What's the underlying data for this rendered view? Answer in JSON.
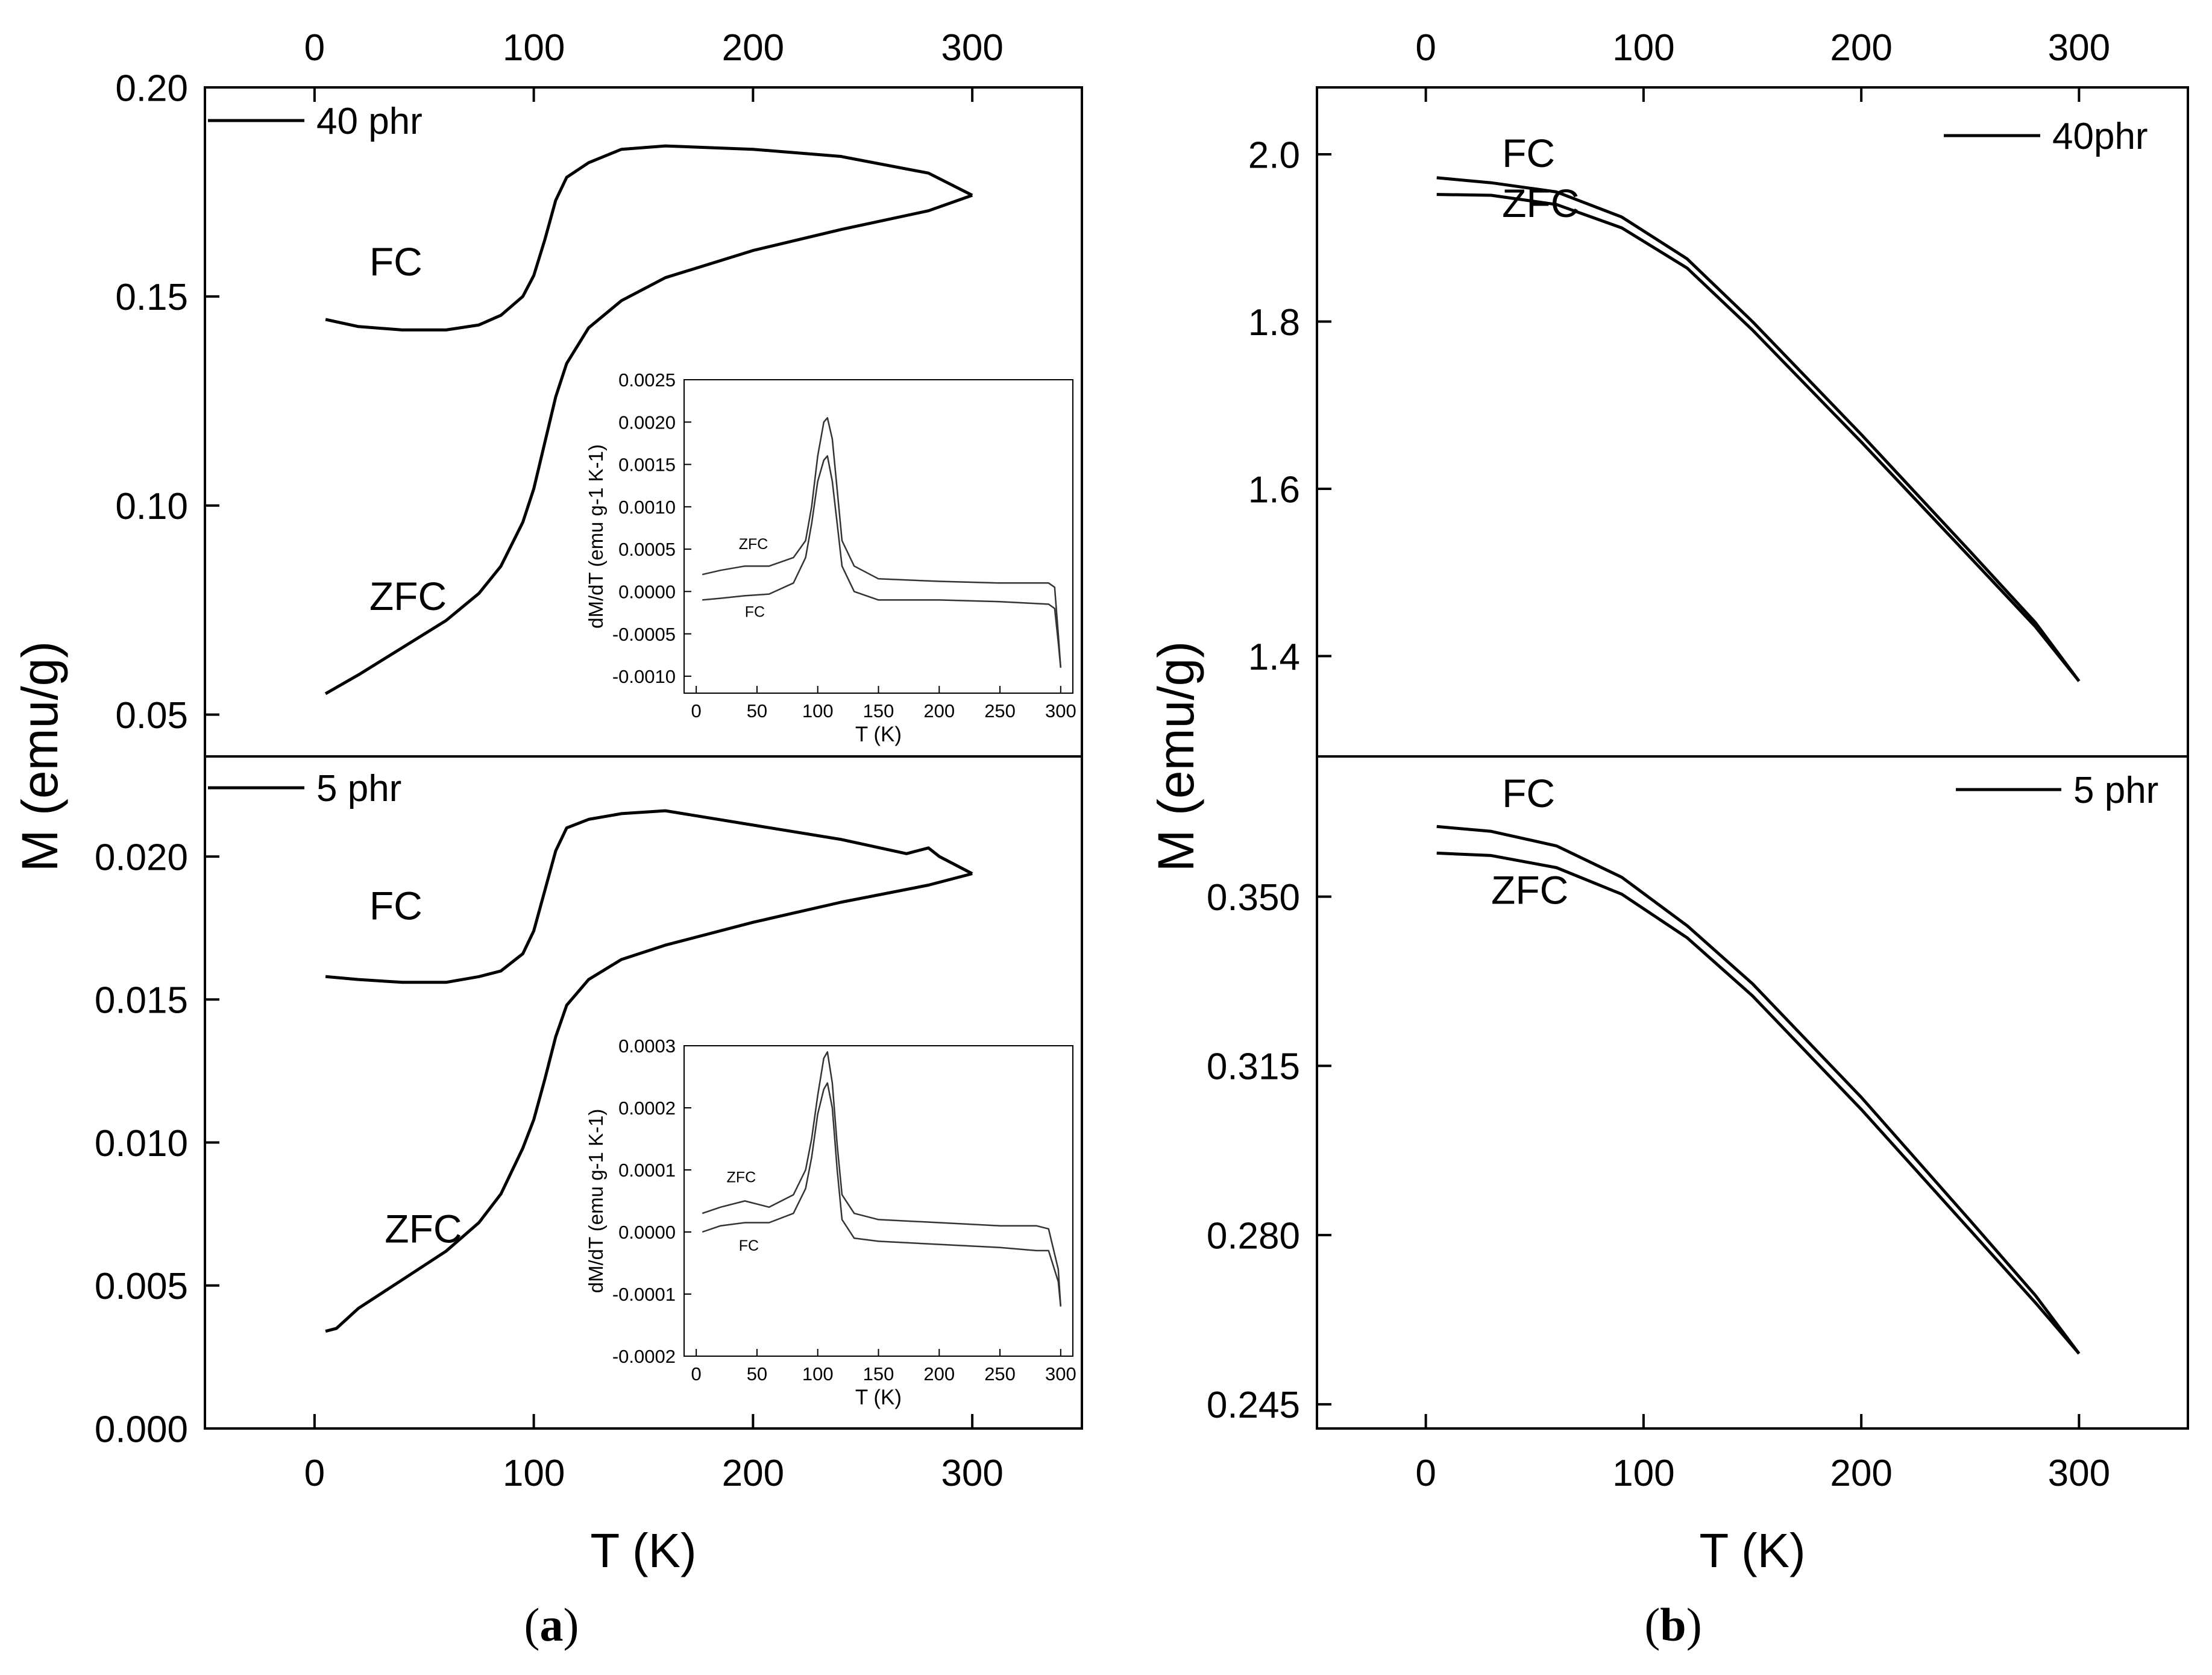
{
  "figure": {
    "panel_a_caption": {
      "open": "(",
      "letter": "a",
      "close": ")"
    },
    "panel_b_caption": {
      "open": "(",
      "letter": "b",
      "close": ")"
    }
  },
  "chart_data": [
    {
      "id": "a-top",
      "type": "line",
      "title": "",
      "legend_label": "40 phr",
      "legend_position": "top-left",
      "xlabel": "T (K)",
      "ylabel": "M (emu/g)",
      "xlim": [
        -50,
        350
      ],
      "ylim": [
        0.04,
        0.2
      ],
      "xticks": [
        0,
        100,
        200,
        300
      ],
      "top_xticks": [
        0,
        100,
        200,
        300
      ],
      "yticks": [
        0.05,
        0.1,
        0.15,
        0.2
      ],
      "yticklabels": [
        "0.05",
        "0.10",
        "0.15",
        "0.20"
      ],
      "series": [
        {
          "name": "FC",
          "x": [
            5,
            20,
            40,
            60,
            75,
            85,
            95,
            100,
            105,
            110,
            115,
            125,
            140,
            160,
            200,
            240,
            280,
            300
          ],
          "y": [
            0.1445,
            0.1428,
            0.142,
            0.142,
            0.1432,
            0.1455,
            0.15,
            0.155,
            0.1635,
            0.173,
            0.1785,
            0.182,
            0.1852,
            0.186,
            0.1852,
            0.1835,
            0.1795,
            0.1742
          ]
        },
        {
          "name": "ZFC",
          "x": [
            5,
            20,
            40,
            60,
            75,
            85,
            95,
            100,
            105,
            110,
            115,
            125,
            140,
            160,
            200,
            240,
            280,
            300
          ],
          "y": [
            0.055,
            0.0595,
            0.066,
            0.0725,
            0.079,
            0.0855,
            0.096,
            0.104,
            0.115,
            0.126,
            0.134,
            0.1425,
            0.149,
            0.1545,
            0.161,
            0.166,
            0.1705,
            0.1742
          ]
        }
      ],
      "annotations": [
        {
          "text": "FC",
          "x": 25,
          "y": 0.155
        },
        {
          "text": "ZFC",
          "x": 25,
          "y": 0.075
        }
      ]
    },
    {
      "id": "a-top-inset",
      "type": "line",
      "xlabel": "T (K)",
      "ylabel": "dM/dT (emu g-1 K-1)",
      "xlim": [
        -10,
        310
      ],
      "ylim": [
        -0.0012,
        0.0025
      ],
      "xticks": [
        0,
        50,
        100,
        150,
        200,
        250,
        300
      ],
      "yticks": [
        -0.001,
        -0.0005,
        0,
        0.0005,
        0.001,
        0.0015,
        0.002,
        0.0025
      ],
      "yticklabels": [
        "-0.0010",
        "-0.0005",
        "0.0000",
        "0.0005",
        "0.0010",
        "0.0015",
        "0.0020",
        "0.0025"
      ],
      "series": [
        {
          "name": "ZFC",
          "x": [
            5,
            20,
            40,
            60,
            80,
            90,
            95,
            100,
            105,
            108,
            112,
            116,
            120,
            130,
            150,
            200,
            250,
            290,
            295,
            298,
            300
          ],
          "y": [
            0.0002,
            0.00025,
            0.0003,
            0.0003,
            0.0004,
            0.0006,
            0.001,
            0.0016,
            0.002,
            0.00205,
            0.0018,
            0.0012,
            0.0006,
            0.0003,
            0.00015,
            0.00012,
            0.0001,
            0.0001,
            5e-05,
            -0.0005,
            -0.0009
          ]
        },
        {
          "name": "FC",
          "x": [
            5,
            20,
            40,
            60,
            80,
            90,
            95,
            100,
            105,
            108,
            112,
            116,
            120,
            130,
            150,
            200,
            250,
            290,
            295,
            298,
            300
          ],
          "y": [
            -0.0001,
            -8e-05,
            -5e-05,
            -3e-05,
            0.0001,
            0.0004,
            0.0008,
            0.0013,
            0.00155,
            0.0016,
            0.0013,
            0.0008,
            0.0003,
            0,
            -0.0001,
            -0.0001,
            -0.00012,
            -0.00015,
            -0.0002,
            -0.0006,
            -0.0009
          ]
        }
      ],
      "annotations": [
        {
          "text": "ZFC",
          "x": 35,
          "y": 0.0005
        },
        {
          "text": "FC",
          "x": 40,
          "y": -0.0003
        }
      ]
    },
    {
      "id": "a-bottom",
      "type": "line",
      "legend_label": "5 phr",
      "legend_position": "top-left",
      "xlabel": "T (K)",
      "ylabel": "M (emu/g)",
      "xlim": [
        -50,
        350
      ],
      "ylim": [
        0,
        0.0235
      ],
      "xticks": [
        0,
        100,
        200,
        300
      ],
      "yticks": [
        0,
        0.005,
        0.01,
        0.015,
        0.02
      ],
      "yticklabels": [
        "0.000",
        "0.005",
        "0.010",
        "0.015",
        "0.020"
      ],
      "series": [
        {
          "name": "FC",
          "x": [
            5,
            20,
            40,
            60,
            75,
            85,
            95,
            100,
            105,
            110,
            115,
            125,
            140,
            160,
            200,
            240,
            270,
            280,
            285,
            300
          ],
          "y": [
            0.0158,
            0.0157,
            0.0156,
            0.0156,
            0.0158,
            0.016,
            0.0166,
            0.0174,
            0.0188,
            0.0202,
            0.021,
            0.0213,
            0.0215,
            0.0216,
            0.0211,
            0.0206,
            0.0201,
            0.0203,
            0.02,
            0.0194
          ]
        },
        {
          "name": "ZFC",
          "x": [
            5,
            10,
            20,
            40,
            60,
            75,
            85,
            95,
            100,
            105,
            110,
            115,
            125,
            140,
            160,
            200,
            240,
            280,
            300
          ],
          "y": [
            0.0034,
            0.0035,
            0.0042,
            0.0052,
            0.0062,
            0.0072,
            0.0082,
            0.0098,
            0.0108,
            0.0122,
            0.0137,
            0.0148,
            0.0157,
            0.0164,
            0.0169,
            0.0177,
            0.0184,
            0.019,
            0.0194
          ]
        }
      ],
      "annotations": [
        {
          "text": "FC",
          "x": 25,
          "y": 0.0178
        },
        {
          "text": "ZFC",
          "x": 32,
          "y": 0.0065
        }
      ]
    },
    {
      "id": "a-bottom-inset",
      "type": "line",
      "xlabel": "T (K)",
      "ylabel": "dM/dT (emu g-1 K-1)",
      "xlim": [
        -10,
        310
      ],
      "ylim": [
        -0.0002,
        0.0003
      ],
      "xticks": [
        0,
        50,
        100,
        150,
        200,
        250,
        300
      ],
      "yticks": [
        -0.0002,
        -0.0001,
        0,
        0.0001,
        0.0002,
        0.0003
      ],
      "yticklabels": [
        "-0.0002",
        "-0.0001",
        "0.0000",
        "0.0001",
        "0.0002",
        "0.0003"
      ],
      "series": [
        {
          "name": "ZFC",
          "x": [
            5,
            20,
            40,
            60,
            80,
            90,
            95,
            100,
            105,
            108,
            112,
            116,
            120,
            130,
            150,
            200,
            250,
            280,
            290,
            298,
            300
          ],
          "y": [
            3e-05,
            4e-05,
            5e-05,
            4e-05,
            6e-05,
            0.0001,
            0.00015,
            0.00022,
            0.00028,
            0.00029,
            0.00024,
            0.00014,
            6e-05,
            3e-05,
            2e-05,
            1.5e-05,
            1e-05,
            1e-05,
            5e-06,
            -6e-05,
            -0.00012
          ]
        },
        {
          "name": "FC",
          "x": [
            5,
            20,
            40,
            60,
            80,
            90,
            95,
            100,
            105,
            108,
            112,
            116,
            120,
            130,
            150,
            200,
            250,
            280,
            290,
            298,
            300
          ],
          "y": [
            0,
            1e-05,
            1.5e-05,
            1.5e-05,
            3e-05,
            7e-05,
            0.00012,
            0.00019,
            0.00023,
            0.00024,
            0.0002,
            0.0001,
            2e-05,
            -1e-05,
            -1.5e-05,
            -2e-05,
            -2.5e-05,
            -3e-05,
            -3e-05,
            -8e-05,
            -0.00012
          ]
        }
      ],
      "annotations": [
        {
          "text": "ZFC",
          "x": 25,
          "y": 8e-05
        },
        {
          "text": "FC",
          "x": 35,
          "y": -3e-05
        }
      ]
    },
    {
      "id": "b-top",
      "type": "line",
      "legend_label": "40phr",
      "legend_position": "top-right",
      "xlabel": "T (K)",
      "ylabel": "M (emu/g)",
      "xlim": [
        -50,
        350
      ],
      "ylim": [
        1.28,
        2.08
      ],
      "xticks": [
        0,
        100,
        200,
        300
      ],
      "top_xticks": [
        0,
        100,
        200,
        300
      ],
      "yticks": [
        1.4,
        1.6,
        1.8,
        2.0
      ],
      "yticklabels": [
        "1.4",
        "1.6",
        "1.8",
        "2.0"
      ],
      "series": [
        {
          "name": "FC",
          "x": [
            5,
            30,
            60,
            90,
            120,
            150,
            200,
            250,
            280,
            300
          ],
          "y": [
            1.972,
            1.966,
            1.955,
            1.925,
            1.875,
            1.8,
            1.665,
            1.525,
            1.44,
            1.37
          ]
        },
        {
          "name": "ZFC",
          "x": [
            5,
            30,
            60,
            90,
            120,
            150,
            200,
            250,
            280,
            300
          ],
          "y": [
            1.952,
            1.951,
            1.94,
            1.912,
            1.864,
            1.79,
            1.656,
            1.518,
            1.435,
            1.37
          ]
        }
      ],
      "annotations": [
        {
          "text": "FC",
          "x": 35,
          "y": 1.985
        },
        {
          "text": "ZFC",
          "x": 35,
          "y": 1.925
        }
      ]
    },
    {
      "id": "b-bottom",
      "type": "line",
      "legend_label": "5 phr",
      "legend_position": "top-right",
      "xlabel": "T (K)",
      "ylabel": "M (emu/g)",
      "xlim": [
        -50,
        350
      ],
      "ylim": [
        0.24,
        0.379
      ],
      "xticks": [
        0,
        100,
        200,
        300
      ],
      "yticks": [
        0.245,
        0.28,
        0.315,
        0.35
      ],
      "yticklabels": [
        "0.245",
        "0.280",
        "0.315",
        "0.350"
      ],
      "series": [
        {
          "name": "FC",
          "x": [
            5,
            30,
            60,
            90,
            120,
            150,
            200,
            250,
            280,
            300
          ],
          "y": [
            0.3645,
            0.3635,
            0.3605,
            0.354,
            0.344,
            0.332,
            0.3085,
            0.283,
            0.2675,
            0.2555
          ]
        },
        {
          "name": "ZFC",
          "x": [
            5,
            30,
            60,
            90,
            120,
            150,
            200,
            250,
            280,
            300
          ],
          "y": [
            0.359,
            0.3585,
            0.356,
            0.3505,
            0.3415,
            0.3295,
            0.306,
            0.281,
            0.266,
            0.2555
          ]
        }
      ],
      "annotations": [
        {
          "text": "FC",
          "x": 35,
          "y": 0.3685
        },
        {
          "text": "ZFC",
          "x": 30,
          "y": 0.3485
        }
      ]
    }
  ]
}
